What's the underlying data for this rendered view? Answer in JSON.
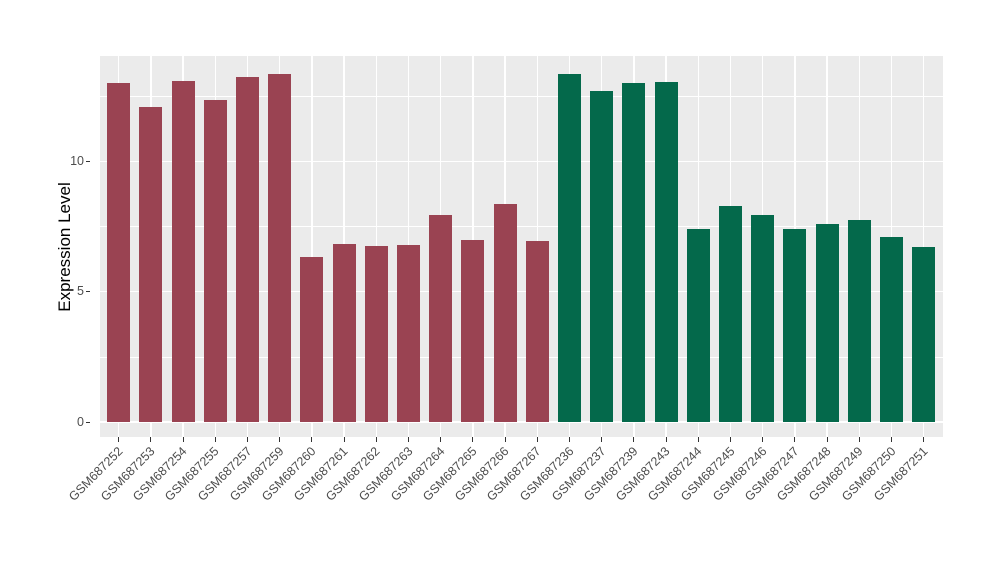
{
  "chart_data": {
    "type": "bar",
    "title": "",
    "xlabel": "",
    "ylabel": "Expression Level",
    "ytick_labels": [
      "0",
      "5",
      "10"
    ],
    "ytick_values": [
      0,
      5,
      10
    ],
    "major_gridlines": [
      0,
      5,
      10
    ],
    "minor_gridlines": [
      2.5,
      7.5,
      12.5
    ],
    "ylim": [
      -0.7,
      14.05
    ],
    "grid": "on",
    "legend_position": "none",
    "series": [
      {
        "color": "#9A4352",
        "bars": [
          {
            "label": "GSM687252",
            "value": 13.0
          },
          {
            "label": "GSM687253",
            "value": 12.1
          },
          {
            "label": "GSM687254",
            "value": 13.1
          },
          {
            "label": "GSM687255",
            "value": 12.35
          },
          {
            "label": "GSM687257",
            "value": 13.25
          },
          {
            "label": "GSM687259",
            "value": 13.35
          },
          {
            "label": "GSM687260",
            "value": 6.35
          },
          {
            "label": "GSM687261",
            "value": 6.85
          },
          {
            "label": "GSM687262",
            "value": 6.75
          },
          {
            "label": "GSM687263",
            "value": 6.8
          },
          {
            "label": "GSM687264",
            "value": 7.95
          },
          {
            "label": "GSM687265",
            "value": 7.0
          },
          {
            "label": "GSM687266",
            "value": 8.35
          },
          {
            "label": "GSM687267",
            "value": 6.95
          }
        ]
      },
      {
        "color": "#04694B",
        "bars": [
          {
            "label": "GSM687236",
            "value": 13.35
          },
          {
            "label": "GSM687237",
            "value": 12.7
          },
          {
            "label": "GSM687239",
            "value": 13.0
          },
          {
            "label": "GSM687243",
            "value": 13.05
          },
          {
            "label": "GSM687244",
            "value": 7.4
          },
          {
            "label": "GSM687245",
            "value": 8.3
          },
          {
            "label": "GSM687246",
            "value": 7.95
          },
          {
            "label": "GSM687247",
            "value": 7.4
          },
          {
            "label": "GSM687248",
            "value": 7.6
          },
          {
            "label": "GSM687249",
            "value": 7.75
          },
          {
            "label": "GSM687250",
            "value": 7.1
          },
          {
            "label": "GSM687251",
            "value": 6.7
          }
        ]
      }
    ]
  },
  "colors": {
    "panel_background": "#EBEBEB",
    "gridline": "#FFFFFF",
    "axis_text": "#4D4D4D",
    "axis_title": "#000000",
    "tick_mark": "#333333",
    "figure_background": "#FFFFFF"
  }
}
